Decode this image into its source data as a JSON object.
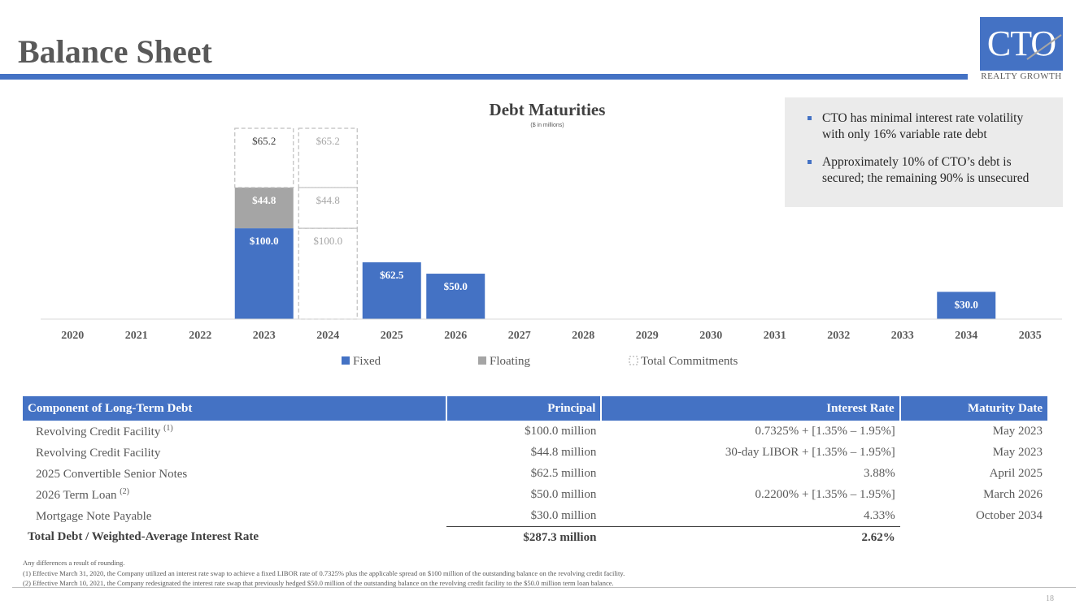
{
  "header": {
    "title": "Balance Sheet",
    "logo_text": "CTO",
    "logo_subtitle": "REALTY GROWTH"
  },
  "callout": {
    "bullets": [
      "CTO has minimal interest rate volatility with only 16% variable rate debt",
      "Approximately 10% of CTO’s debt is secured; the remaining 90% is unsecured"
    ]
  },
  "chart_data": {
    "type": "bar",
    "stacked": true,
    "title": "Debt Maturities",
    "subtitle": "($ in millions)",
    "categories": [
      "2020",
      "2021",
      "2022",
      "2023",
      "2024",
      "2025",
      "2026",
      "2027",
      "2028",
      "2029",
      "2030",
      "2031",
      "2032",
      "2033",
      "2034",
      "2035"
    ],
    "series": [
      {
        "name": "Fixed",
        "values": [
          0,
          0,
          0,
          100.0,
          0,
          62.5,
          50.0,
          0,
          0,
          0,
          0,
          0,
          0,
          0,
          30.0,
          0
        ],
        "color": "#4472c4"
      },
      {
        "name": "Floating",
        "values": [
          0,
          0,
          0,
          44.8,
          0,
          0,
          0,
          0,
          0,
          0,
          0,
          0,
          0,
          0,
          0,
          0
        ],
        "color": "#a5a5a5"
      },
      {
        "name": "Total Commitments",
        "style": "dashed-outline",
        "segments": [
          {
            "category": "2023",
            "values": [
              65.2
            ]
          },
          {
            "category": "2024",
            "values": [
              100.0,
              44.8,
              65.2
            ]
          }
        ]
      }
    ],
    "data_labels": [
      {
        "category": "2023",
        "series": "Fixed",
        "text": "$100.0"
      },
      {
        "category": "2023",
        "series": "Floating",
        "text": "$44.8"
      },
      {
        "category": "2023",
        "series": "Total Commitments",
        "text": "$65.2"
      },
      {
        "category": "2024",
        "series": "Total Commitments",
        "text": "$100.0"
      },
      {
        "category": "2024",
        "series": "Total Commitments",
        "text": "$44.8"
      },
      {
        "category": "2024",
        "series": "Total Commitments",
        "text": "$65.2"
      },
      {
        "category": "2025",
        "series": "Fixed",
        "text": "$62.5"
      },
      {
        "category": "2026",
        "series": "Fixed",
        "text": "$50.0"
      },
      {
        "category": "2034",
        "series": "Fixed",
        "text": "$30.0"
      }
    ],
    "legend": [
      "Fixed",
      "Floating",
      "Total Commitments"
    ],
    "legend_position": "bottom",
    "ylim": [
      0,
      210
    ],
    "grid": false
  },
  "table": {
    "headers": [
      "Component of Long-Term Debt",
      "Principal",
      "Interest Rate",
      "Maturity Date"
    ],
    "rows": [
      {
        "component": "Revolving Credit Facility",
        "note": "(1)",
        "principal": "$100.0 million",
        "rate": "0.7325% + [1.35% – 1.95%]",
        "maturity": "May 2023"
      },
      {
        "component": "Revolving Credit Facility",
        "note": "",
        "principal": "$44.8 million",
        "rate": "30-day LIBOR + [1.35% – 1.95%]",
        "maturity": "May 2023"
      },
      {
        "component": "2025 Convertible Senior Notes",
        "note": "",
        "principal": "$62.5 million",
        "rate": "3.88%",
        "maturity": "April 2025"
      },
      {
        "component": "2026 Term Loan",
        "note": "(2)",
        "principal": "$50.0 million",
        "rate": "0.2200% + [1.35% – 1.95%]",
        "maturity": "March 2026"
      },
      {
        "component": "Mortgage Note Payable",
        "note": "",
        "principal": "$30.0 million",
        "rate": "4.33%",
        "maturity": "October 2034"
      }
    ],
    "total": {
      "label": "Total Debt / Weighted-Average Interest Rate",
      "principal": "$287.3 million",
      "rate": "2.62%"
    }
  },
  "footnotes": [
    "Any differences a result of rounding.",
    "(1)   Effective March 31, 2020, the Company utilized an interest rate swap to achieve a fixed LIBOR rate of 0.7325% plus the applicable spread on $100 million of the outstanding balance on the revolving credit facility.",
    "(2)   Effective March 10, 2021, the Company redesignated the interest rate swap that previously hedged $50.0 million of the outstanding balance on the revolving credit facility to the $50.0 million term loan balance."
  ],
  "page_number": "18"
}
